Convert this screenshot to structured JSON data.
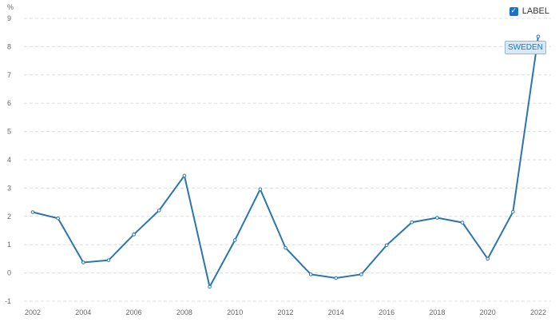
{
  "legend": {
    "label": "LABEL",
    "checked": true,
    "check_glyph": "✓"
  },
  "chart_data": {
    "type": "line",
    "ylabel": "%",
    "ylim": [
      -1,
      9
    ],
    "yticks": [
      -1,
      0,
      1,
      2,
      3,
      4,
      5,
      6,
      7,
      8,
      9
    ],
    "xlim": [
      2002,
      2022
    ],
    "xticks": [
      2002,
      2004,
      2006,
      2008,
      2010,
      2012,
      2014,
      2016,
      2018,
      2020,
      2022
    ],
    "grid": true,
    "series": [
      {
        "name": "SWEDEN",
        "color": "#2a75ad",
        "x": [
          2002,
          2003,
          2004,
          2005,
          2006,
          2007,
          2008,
          2009,
          2010,
          2011,
          2012,
          2013,
          2014,
          2015,
          2016,
          2017,
          2018,
          2019,
          2020,
          2021,
          2022
        ],
        "values": [
          2.15,
          1.93,
          0.37,
          0.45,
          1.36,
          2.21,
          3.44,
          -0.49,
          1.16,
          2.96,
          0.89,
          -0.05,
          -0.18,
          -0.05,
          0.98,
          1.79,
          1.95,
          1.78,
          0.5,
          2.16,
          8.36
        ]
      }
    ]
  }
}
